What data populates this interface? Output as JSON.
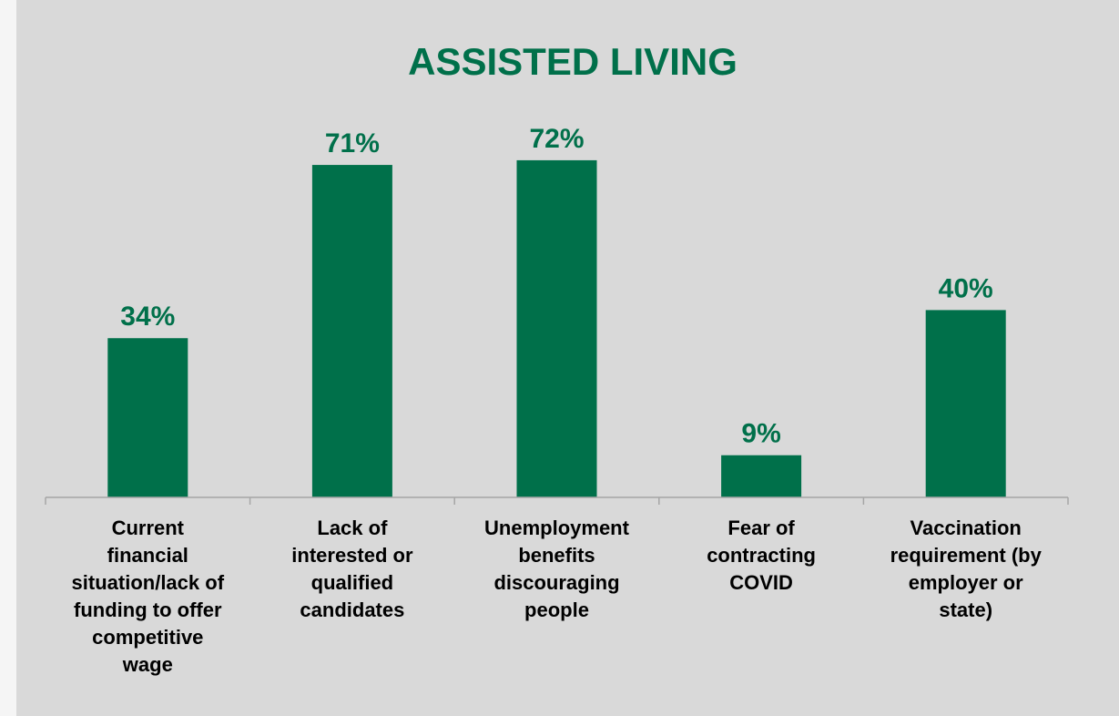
{
  "chart_data": {
    "type": "bar",
    "title": "ASSISTED LIVING",
    "categories": [
      "Current financial situation/lack of funding to offer competitive wage",
      "Lack of interested or qualified candidates",
      "Unemployment benefits discouraging people",
      "Fear of contracting COVID",
      "Vaccination requirement (by employer or state)"
    ],
    "category_lines": [
      [
        "Current",
        "financial",
        "situation/lack of",
        "funding to offer",
        "competitive",
        "wage"
      ],
      [
        "Lack of",
        "interested or",
        "qualified",
        "candidates"
      ],
      [
        "Unemployment",
        "benefits",
        "discouraging",
        "people"
      ],
      [
        "Fear of",
        "contracting",
        "COVID"
      ],
      [
        "Vaccination",
        "requirement (by",
        "employer or",
        "state)"
      ]
    ],
    "values": [
      34,
      71,
      72,
      9,
      40
    ],
    "value_labels": [
      "34%",
      "71%",
      "72%",
      "9%",
      "40%"
    ],
    "xlabel": "",
    "ylabel": "",
    "ylim": [
      0,
      80
    ],
    "grid": false,
    "legend": "none",
    "colors": {
      "bar": "#00704a",
      "title": "#00704a",
      "value_label": "#00704a",
      "axis": "#a6a6a6",
      "background": "#d9d9d9",
      "page": "#f5f5f5",
      "category_label": "#000000"
    }
  }
}
